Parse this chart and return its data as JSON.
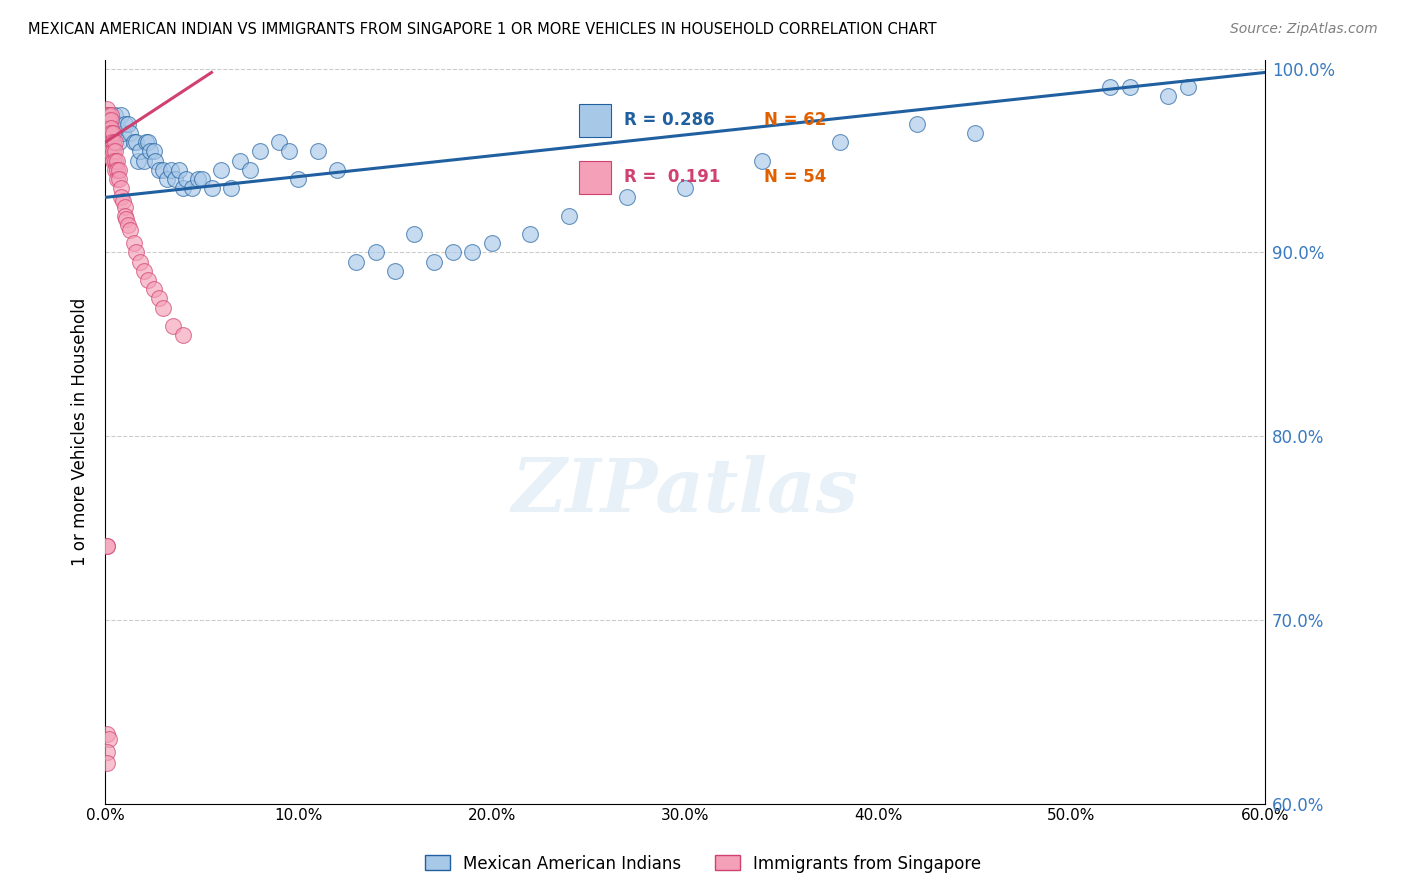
{
  "title": "MEXICAN AMERICAN INDIAN VS IMMIGRANTS FROM SINGAPORE 1 OR MORE VEHICLES IN HOUSEHOLD CORRELATION CHART",
  "source": "Source: ZipAtlas.com",
  "ylabel": "1 or more Vehicles in Household",
  "xlim": [
    0.0,
    0.6
  ],
  "ylim": [
    0.6,
    1.005
  ],
  "xticks": [
    0.0,
    0.1,
    0.2,
    0.3,
    0.4,
    0.5,
    0.6
  ],
  "yticks": [
    0.6,
    0.7,
    0.8,
    0.9,
    1.0
  ],
  "ytick_labels": [
    "60.0%",
    "70.0%",
    "80.0%",
    "90.0%",
    "100.0%"
  ],
  "xtick_labels": [
    "0.0%",
    "10.0%",
    "20.0%",
    "30.0%",
    "40.0%",
    "50.0%",
    "60.0%"
  ],
  "blue_R": 0.286,
  "blue_N": 62,
  "pink_R": 0.191,
  "pink_N": 54,
  "blue_color": "#a8c8e8",
  "pink_color": "#f4a0b8",
  "trendline_blue": "#2060a0",
  "trendline_pink": "#d04070",
  "blue_label": "Mexican American Indians",
  "pink_label": "Immigrants from Singapore",
  "watermark": "ZIPatlas",
  "blue_scatter_x": [
    0.002,
    0.004,
    0.005,
    0.006,
    0.007,
    0.008,
    0.009,
    0.01,
    0.012,
    0.013,
    0.015,
    0.016,
    0.017,
    0.018,
    0.02,
    0.021,
    0.022,
    0.023,
    0.025,
    0.026,
    0.028,
    0.03,
    0.032,
    0.034,
    0.036,
    0.038,
    0.04,
    0.042,
    0.045,
    0.048,
    0.05,
    0.055,
    0.06,
    0.065,
    0.07,
    0.075,
    0.08,
    0.09,
    0.095,
    0.1,
    0.11,
    0.12,
    0.13,
    0.14,
    0.15,
    0.16,
    0.17,
    0.18,
    0.19,
    0.2,
    0.22,
    0.24,
    0.27,
    0.3,
    0.34,
    0.38,
    0.42,
    0.45,
    0.52,
    0.53,
    0.55,
    0.56
  ],
  "blue_scatter_y": [
    0.97,
    0.965,
    0.975,
    0.97,
    0.96,
    0.975,
    0.965,
    0.97,
    0.97,
    0.965,
    0.96,
    0.96,
    0.95,
    0.955,
    0.95,
    0.96,
    0.96,
    0.955,
    0.955,
    0.95,
    0.945,
    0.945,
    0.94,
    0.945,
    0.94,
    0.945,
    0.935,
    0.94,
    0.935,
    0.94,
    0.94,
    0.935,
    0.945,
    0.935,
    0.95,
    0.945,
    0.955,
    0.96,
    0.955,
    0.94,
    0.955,
    0.945,
    0.895,
    0.9,
    0.89,
    0.91,
    0.895,
    0.9,
    0.9,
    0.905,
    0.91,
    0.92,
    0.93,
    0.935,
    0.95,
    0.96,
    0.97,
    0.965,
    0.99,
    0.99,
    0.985,
    0.99
  ],
  "pink_scatter_x": [
    0.001,
    0.001,
    0.001,
    0.001,
    0.001,
    0.002,
    0.002,
    0.002,
    0.002,
    0.003,
    0.003,
    0.003,
    0.003,
    0.003,
    0.003,
    0.003,
    0.003,
    0.004,
    0.004,
    0.004,
    0.004,
    0.005,
    0.005,
    0.005,
    0.005,
    0.006,
    0.006,
    0.006,
    0.007,
    0.007,
    0.008,
    0.008,
    0.009,
    0.01,
    0.01,
    0.011,
    0.012,
    0.013,
    0.015,
    0.016,
    0.018,
    0.02,
    0.022,
    0.025,
    0.028,
    0.03,
    0.035,
    0.04,
    0.001,
    0.001,
    0.001,
    0.002,
    0.001,
    0.001
  ],
  "pink_scatter_y": [
    0.978,
    0.975,
    0.972,
    0.97,
    0.968,
    0.975,
    0.972,
    0.968,
    0.965,
    0.975,
    0.972,
    0.968,
    0.965,
    0.96,
    0.958,
    0.955,
    0.952,
    0.965,
    0.96,
    0.955,
    0.95,
    0.96,
    0.955,
    0.95,
    0.945,
    0.95,
    0.945,
    0.94,
    0.945,
    0.94,
    0.935,
    0.93,
    0.928,
    0.925,
    0.92,
    0.918,
    0.915,
    0.912,
    0.905,
    0.9,
    0.895,
    0.89,
    0.885,
    0.88,
    0.875,
    0.87,
    0.86,
    0.855,
    0.74,
    0.74,
    0.638,
    0.635,
    0.628,
    0.622
  ],
  "blue_trendline_x": [
    0.0,
    0.6
  ],
  "blue_trendline_y": [
    0.93,
    0.998
  ],
  "pink_trendline_x": [
    0.0,
    0.055
  ],
  "pink_trendline_y": [
    0.96,
    0.998
  ]
}
